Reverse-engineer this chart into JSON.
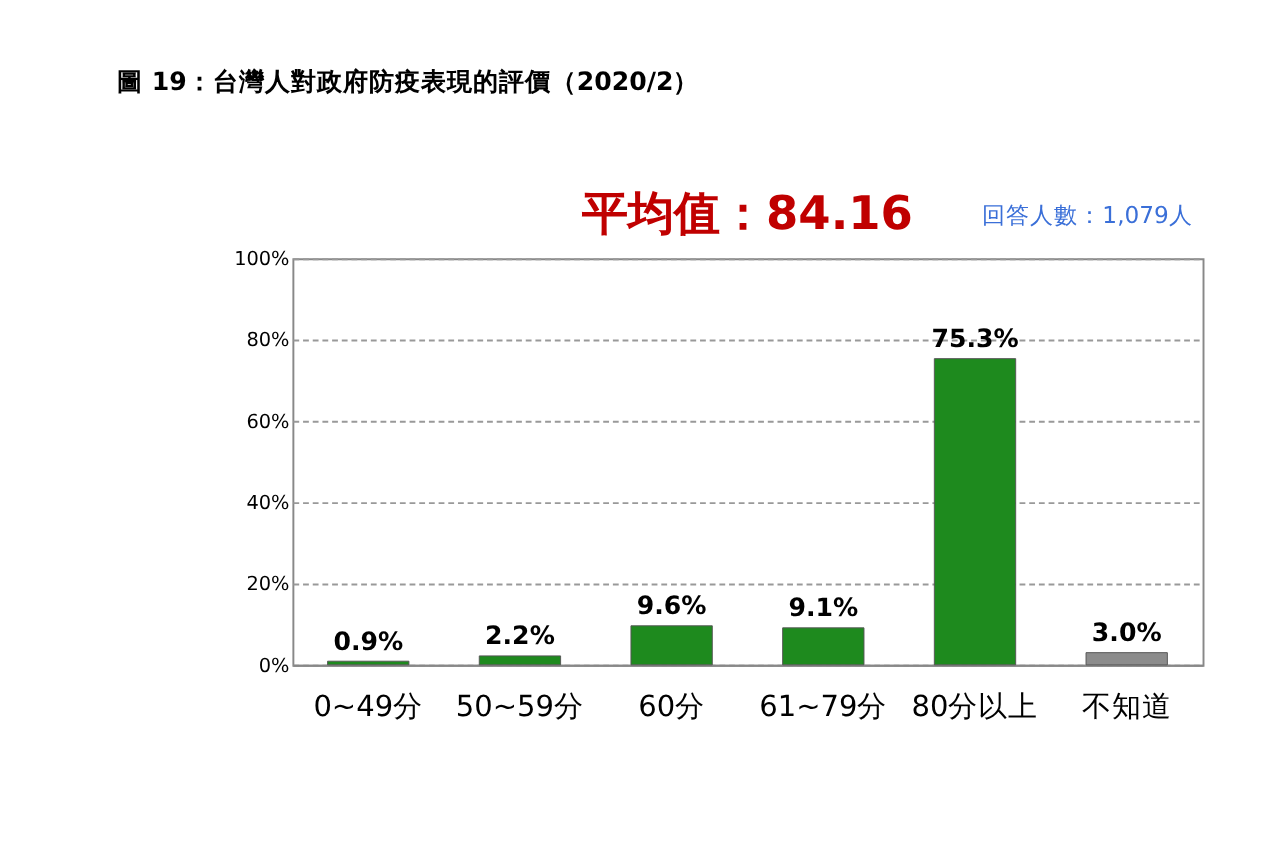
{
  "chart_data": {
    "type": "bar",
    "title": "圖 19：台灣人對政府防疫表現的評價（2020/2）",
    "categories": [
      "0~49分",
      "50~59分",
      "60分",
      "61~79分",
      "80分以上",
      "不知道"
    ],
    "values": [
      0.9,
      2.2,
      9.6,
      9.1,
      75.3,
      3.0
    ],
    "colors": [
      "#1e8a1e",
      "#1e8a1e",
      "#1e8a1e",
      "#1e8a1e",
      "#1e8a1e",
      "#8c8c8c"
    ],
    "value_labels": [
      "0.9%",
      "2.2%",
      "9.6%",
      "9.1%",
      "75.3%",
      "3.0%"
    ],
    "ylim": [
      0,
      100
    ],
    "yticks": [
      {
        "value": 0,
        "label": "0%"
      },
      {
        "value": 20,
        "label": "20%"
      },
      {
        "value": 40,
        "label": "40%"
      },
      {
        "value": 60,
        "label": "60%"
      },
      {
        "value": 80,
        "label": "80%"
      },
      {
        "value": 100,
        "label": "100%"
      }
    ],
    "grid": "y",
    "annotations": [
      "平均值：84.16",
      "回答人數：1,079人"
    ]
  }
}
